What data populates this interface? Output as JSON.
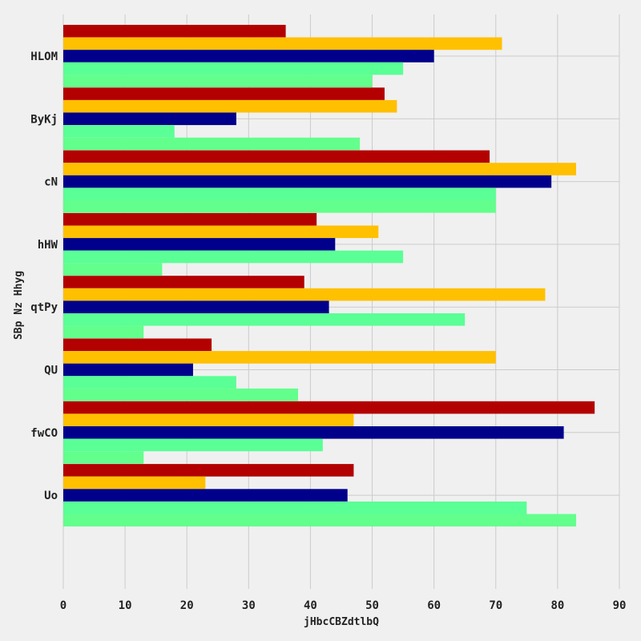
{
  "chart_data": {
    "type": "bar",
    "orientation": "horizontal",
    "categories": [
      "HLOM",
      "ByKj",
      "cN",
      "hHW",
      "qtPy",
      "QU",
      "fwCO",
      "Uo"
    ],
    "series": [
      {
        "color": "#b30000",
        "values": [
          36,
          52,
          69,
          41,
          39,
          24,
          86,
          47
        ]
      },
      {
        "color": "#ffc000",
        "values": [
          71,
          54,
          83,
          51,
          78,
          70,
          47,
          23
        ]
      },
      {
        "color": "#00008b",
        "values": [
          60,
          28,
          79,
          44,
          43,
          21,
          81,
          46
        ]
      },
      {
        "color": "#5aff96",
        "values": [
          55,
          18,
          70,
          55,
          65,
          28,
          42,
          75
        ]
      },
      {
        "color": "#63ff8c",
        "values": [
          50,
          48,
          70,
          16,
          13,
          38,
          13,
          83
        ]
      }
    ],
    "xlabel": "jHbcCBZdtlbQ",
    "ylabel": "SBp Nz Hhyg",
    "xlim": [
      0,
      90
    ],
    "xticks": [
      0,
      10,
      20,
      30,
      40,
      50,
      60,
      70,
      80,
      90
    ],
    "grid": true,
    "legend": "none"
  }
}
